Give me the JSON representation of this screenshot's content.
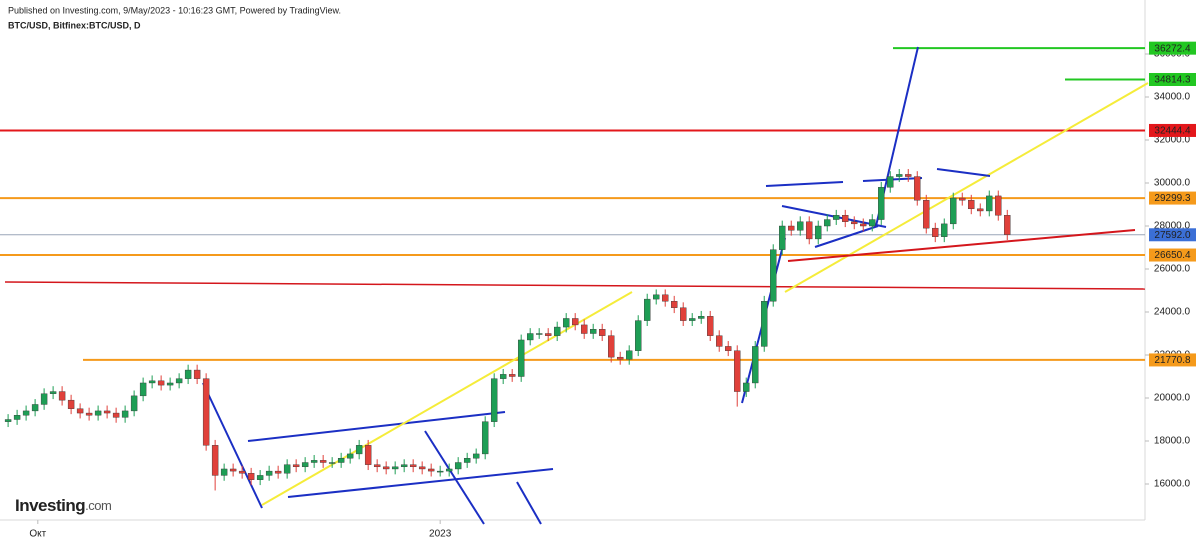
{
  "chart_data": {
    "type": "candlestick",
    "subtitle": "Published on Investing.com, 9/May/2023 - 10:16:23 GMT, Powered by TradingView.",
    "title": "BTC/USD, Bitfinex:BTC/USD, D",
    "brand": "Investing",
    "brand_suffix": ".com",
    "up_color": "#1e9e55",
    "down_color": "#e0403a",
    "ylim": [
      14326,
      38512
    ],
    "yticks": [
      {
        "value": 16000,
        "label": "16000.0"
      },
      {
        "value": 18000,
        "label": "18000.0"
      },
      {
        "value": 20000,
        "label": "20000.0"
      },
      {
        "value": 22000,
        "label": "22000.0"
      },
      {
        "value": 24000,
        "label": "24000.0"
      },
      {
        "value": 26000,
        "label": "26000.0"
      },
      {
        "value": 28000,
        "label": "28000.0"
      },
      {
        "value": 30000,
        "label": "30000.0"
      },
      {
        "value": 32000,
        "label": "32000.0"
      },
      {
        "value": 34000,
        "label": "34000.0"
      },
      {
        "value": 36000,
        "label": "36000.0"
      }
    ],
    "xlim": [
      -0.9,
      126.3
    ],
    "xticks": [
      {
        "value": 3.3,
        "label": "Окт"
      },
      {
        "value": 48,
        "label": "2023"
      }
    ],
    "levels": [
      {
        "value": 36272.4,
        "label": "36272.4",
        "color": "#22c722"
      },
      {
        "value": 34814.3,
        "label": "34814.3",
        "color": "#22c722"
      },
      {
        "value": 32444.4,
        "label": "32444.4",
        "color": "#e3171b"
      },
      {
        "value": 29299.3,
        "label": "29299.3",
        "color": "#f59a1b"
      },
      {
        "value": 27592,
        "label": "27592.0",
        "color": "#3b6fd6"
      },
      {
        "value": 26650.4,
        "label": "26650.4",
        "color": "#f59a1b"
      },
      {
        "value": 21770.8,
        "label": "21770.8",
        "color": "#f59a1b"
      }
    ],
    "open": [
      18900,
      19000,
      19200,
      19400,
      19700,
      20200,
      20300,
      19900,
      19500,
      19300,
      19200,
      19400,
      19300,
      19100,
      19400,
      20100,
      20700,
      20800,
      20600,
      20700,
      20900,
      21300,
      20900,
      17800,
      16400,
      16700,
      16600,
      16500,
      16200,
      16400,
      16600,
      16500,
      16900,
      16800,
      17000,
      17100,
      17000,
      17000,
      17200,
      17400,
      17800,
      16900,
      16800,
      16700,
      16800,
      16900,
      16800,
      16700,
      16600,
      16600,
      16700,
      17000,
      17200,
      17400,
      18900,
      20900,
      21100,
      21000,
      22700,
      23000,
      23000,
      22900,
      23300,
      23700,
      23400,
      23000,
      23200,
      22900,
      21900,
      21800,
      22200,
      23600,
      24600,
      24800,
      24500,
      24200,
      23600,
      23700,
      23800,
      22900,
      22400,
      22200,
      20300,
      20700,
      22400,
      24500,
      26900,
      28000,
      27800,
      28200,
      27400,
      28000,
      28300,
      28500,
      28200,
      28100,
      28000,
      28300,
      29800,
      30300,
      30400,
      30300,
      29200,
      27900,
      27500,
      28100,
      29300,
      29200,
      28800,
      28700,
      29400,
      28500
    ],
    "high": [
      19250,
      19450,
      19650,
      19950,
      20450,
      20550,
      20550,
      20150,
      19750,
      19550,
      19650,
      19650,
      19550,
      19650,
      20350,
      20950,
      21050,
      21050,
      20950,
      21150,
      21550,
      21550,
      21150,
      18050,
      16950,
      16950,
      16850,
      16750,
      16650,
      16850,
      16850,
      17150,
      17150,
      17250,
      17350,
      17350,
      17250,
      17450,
      17650,
      18050,
      18050,
      17150,
      17050,
      17050,
      17150,
      17150,
      17050,
      16950,
      16850,
      16950,
      17250,
      17450,
      17650,
      19150,
      21150,
      21350,
      21350,
      22950,
      23250,
      23250,
      23250,
      23550,
      23950,
      23950,
      23650,
      23450,
      23450,
      23150,
      22150,
      22450,
      23850,
      24850,
      25050,
      25050,
      24750,
      24450,
      23950,
      24050,
      24050,
      23150,
      22650,
      22450,
      20950,
      22650,
      24750,
      27150,
      28250,
      28250,
      28450,
      28450,
      28250,
      28550,
      28750,
      28750,
      28450,
      28350,
      28550,
      30050,
      30550,
      30650,
      30650,
      30550,
      29450,
      28150,
      28350,
      29550,
      29550,
      29450,
      29050,
      29650,
      29650,
      28750
    ],
    "low": [
      18650,
      18750,
      18950,
      19150,
      19450,
      19950,
      19650,
      19250,
      19050,
      18950,
      18950,
      19050,
      18850,
      18850,
      19150,
      19850,
      20450,
      20350,
      20350,
      20450,
      20650,
      20650,
      17550,
      15700,
      16150,
      16350,
      16250,
      15950,
      15950,
      16150,
      16250,
      16250,
      16550,
      16550,
      16750,
      16750,
      16750,
      16750,
      16950,
      17150,
      16650,
      16550,
      16450,
      16450,
      16550,
      16550,
      16450,
      16350,
      16350,
      16350,
      16450,
      16750,
      16950,
      17150,
      18650,
      20650,
      20750,
      20750,
      22450,
      22750,
      22650,
      22650,
      23050,
      23150,
      22750,
      22750,
      22650,
      21650,
      21550,
      21550,
      21950,
      23350,
      24350,
      24250,
      23950,
      23350,
      23350,
      23450,
      22650,
      22150,
      21950,
      19600,
      20050,
      20450,
      22150,
      24250,
      26650,
      27550,
      27550,
      27150,
      27150,
      27750,
      28050,
      27950,
      27850,
      27750,
      27750,
      28050,
      29550,
      30050,
      30050,
      28950,
      27650,
      27250,
      27250,
      27850,
      28950,
      28550,
      28450,
      28450,
      28250,
      27350
    ],
    "close": [
      19000,
      19200,
      19400,
      19700,
      20200,
      20300,
      19900,
      19500,
      19300,
      19200,
      19400,
      19300,
      19100,
      19400,
      20100,
      20700,
      20800,
      20600,
      20700,
      20900,
      21300,
      20900,
      17800,
      16400,
      16700,
      16600,
      16500,
      16200,
      16400,
      16600,
      16500,
      16900,
      16800,
      17000,
      17100,
      17000,
      17000,
      17200,
      17400,
      17800,
      16900,
      16800,
      16700,
      16800,
      16900,
      16800,
      16700,
      16600,
      16600,
      16700,
      17000,
      17200,
      17400,
      18900,
      20900,
      21100,
      21000,
      22700,
      23000,
      23000,
      22900,
      23300,
      23700,
      23400,
      23000,
      23200,
      22900,
      21900,
      21800,
      22200,
      23600,
      24600,
      24800,
      24500,
      24200,
      23600,
      23700,
      23800,
      22900,
      22400,
      22200,
      20300,
      20700,
      22400,
      24500,
      26900,
      28000,
      27800,
      28200,
      27400,
      28000,
      28300,
      28500,
      28200,
      28100,
      28000,
      28300,
      29800,
      30300,
      30400,
      30300,
      29200,
      27900,
      27500,
      28100,
      29300,
      29200,
      28800,
      28700,
      29400,
      28500,
      27600
    ]
  }
}
